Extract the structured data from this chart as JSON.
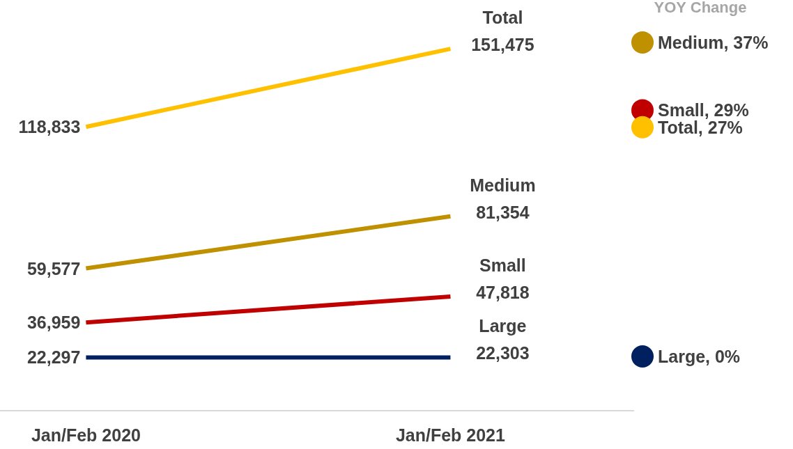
{
  "chart_data": [
    {
      "type": "line",
      "categories": [
        "Jan/Feb 2020",
        "Jan/Feb 2021"
      ],
      "tick_labels": "x",
      "series": [
        {
          "name": "Total",
          "color": "#ffc000",
          "values": [
            118833,
            151475
          ],
          "value_labels": [
            "118,833",
            "151,475"
          ]
        },
        {
          "name": "Medium",
          "color": "#bf9000",
          "values": [
            59577,
            81354
          ],
          "value_labels": [
            "59,577",
            "81,354"
          ]
        },
        {
          "name": "Small",
          "color": "#c00000",
          "values": [
            36959,
            47818
          ],
          "value_labels": [
            "36,959",
            "47,818"
          ]
        },
        {
          "name": "Large",
          "color": "#002060",
          "values": [
            22297,
            22303
          ],
          "value_labels": [
            "22,297",
            "22,303"
          ]
        }
      ]
    },
    {
      "type": "other",
      "title": "YOY Change",
      "values": [
        37,
        29,
        27,
        0
      ],
      "value_labels": [
        "Medium, 37%",
        "Small, 29%",
        "Total, 27%",
        "Large, 0%"
      ],
      "colors": [
        "#bf9000",
        "#c00000",
        "#ffc000",
        "#002060"
      ]
    }
  ]
}
